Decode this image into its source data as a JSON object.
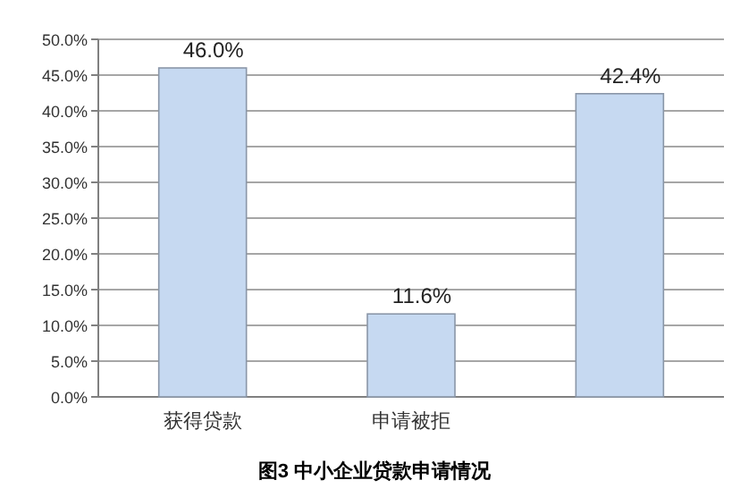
{
  "chart_data": {
    "type": "bar",
    "title": "图3 中小企业贷款申请情况",
    "categories": [
      "获得贷款",
      "申请被拒",
      null
    ],
    "values": [
      46.0,
      11.6,
      42.4
    ],
    "value_labels": [
      "46.0%",
      "11.6%",
      "42.4%"
    ],
    "color": "#c6d9f1",
    "ylim": [
      0,
      50
    ],
    "yticks": [
      {
        "value": 0,
        "label": "0.0%"
      },
      {
        "value": 5,
        "label": "5.0%"
      },
      {
        "value": 10,
        "label": "10.0%"
      },
      {
        "value": 15,
        "label": "15.0%"
      },
      {
        "value": 20,
        "label": "20.0%"
      },
      {
        "value": 25,
        "label": "25.0%"
      },
      {
        "value": 30,
        "label": "30.0%"
      },
      {
        "value": 35,
        "label": "35.0%"
      },
      {
        "value": 40,
        "label": "40.0%"
      },
      {
        "value": 45,
        "label": "45.0%"
      },
      {
        "value": 50,
        "label": "50.0%"
      }
    ],
    "grid": "y"
  }
}
